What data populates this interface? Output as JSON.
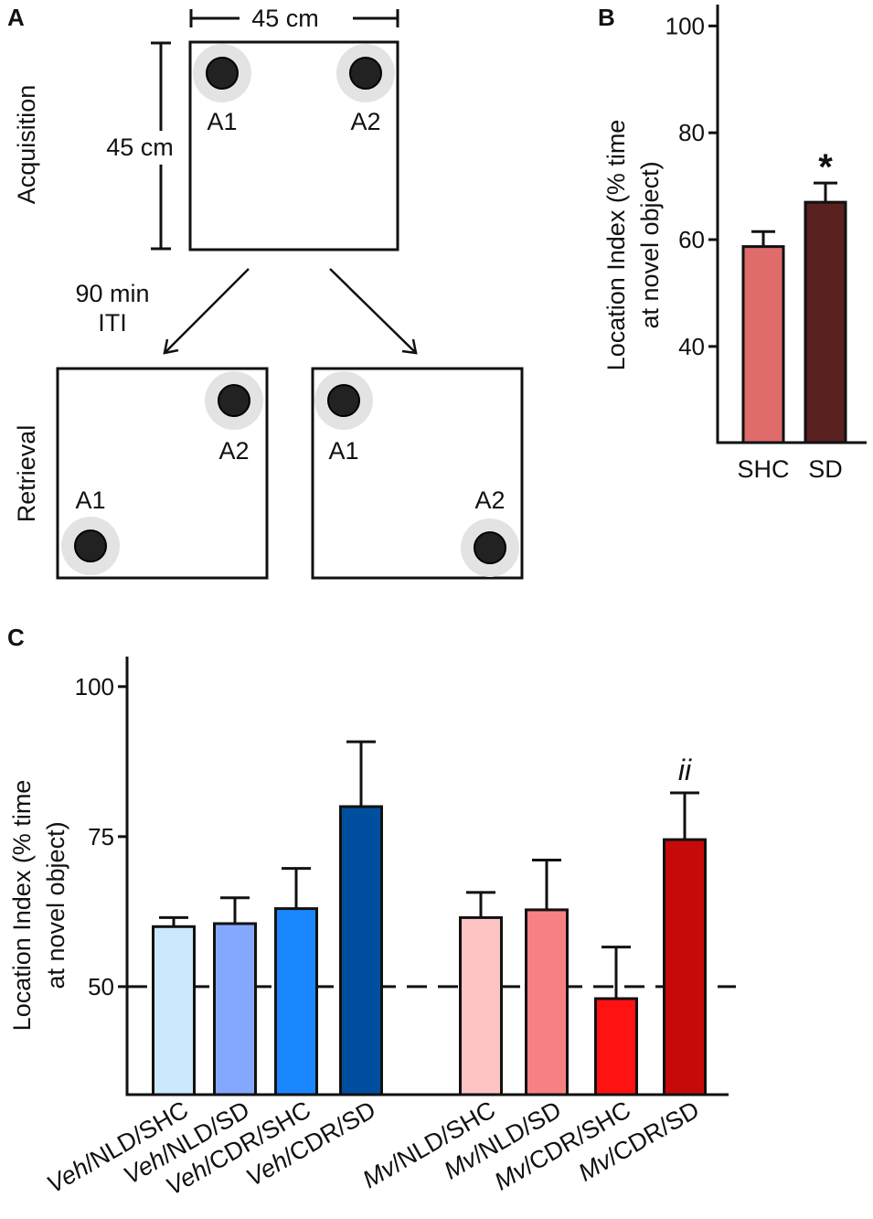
{
  "panel_a": {
    "letter": "A",
    "acquisition_label": "Acquisition",
    "retrieval_label": "Retrieval",
    "width_label": "45 cm",
    "height_label": "45 cm",
    "iti_line1": "90 min",
    "iti_line2": "ITI",
    "object_a1": "A1",
    "object_a2": "A2"
  },
  "chart_data": [
    {
      "panel": "B",
      "type": "bar",
      "categories": [
        "SHC",
        "SD"
      ],
      "values": [
        58.7,
        67.0
      ],
      "errors": [
        2.8,
        3.6
      ],
      "colors": [
        "#e06b6b",
        "#58201f"
      ],
      "ylabel_line1": "Location Index (% time",
      "ylabel_line2": "at novel object)",
      "yticks": [
        40,
        60,
        80,
        100
      ],
      "ylim": [
        22,
        104
      ],
      "annotations": [
        {
          "category": "SD",
          "text": "*"
        }
      ]
    },
    {
      "panel": "C",
      "type": "bar",
      "categories": [
        "Veh/NLD/SHC",
        "Veh/NLD/SD",
        "Veh/CDR/SHC",
        "Veh/CDR/SD",
        "Mv/NLD/SHC",
        "Mv/NLD/SD",
        "Mv/CDR/SHC",
        "Mv/CDR/SD"
      ],
      "label_prefixes": [
        "Veh",
        "Veh",
        "Veh",
        "Veh",
        "Mv",
        "Mv",
        "Mv",
        "Mv"
      ],
      "label_suffixes": [
        "/NLD/SHC",
        "/NLD/SD",
        "/CDR/SHC",
        "/CDR/SD",
        "/NLD/SHC",
        "/NLD/SD",
        "/CDR/SHC",
        "/CDR/SD"
      ],
      "values": [
        60,
        60.5,
        63,
        80,
        61.5,
        62.8,
        48,
        74.5
      ],
      "errors": [
        1.5,
        4.3,
        6.7,
        10.8,
        4.2,
        8.3,
        8.6,
        7.8
      ],
      "colors": [
        "#cbe9fd",
        "#85a8ff",
        "#1a87ff",
        "#004f9f",
        "#fdc3c5",
        "#f78085",
        "#ff1212",
        "#c60a0a"
      ],
      "ylabel_line1": "Location Index (% time",
      "ylabel_line2": "at novel object)",
      "yticks": [
        50,
        75,
        100
      ],
      "ylim": [
        32,
        105
      ],
      "reference_line": 50,
      "annotations": [
        {
          "category": "Mv/CDR/SD",
          "text": "ii"
        }
      ]
    }
  ]
}
